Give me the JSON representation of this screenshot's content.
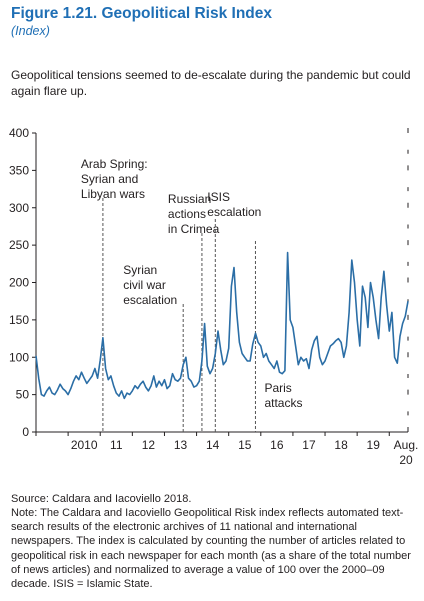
{
  "figure": {
    "title": "Figure 1.21.  Geopolitical Risk Index",
    "subtitle": "(Index)",
    "description": "Geopolitical tensions seemed to de-escalate during the pandemic but could again flare up.",
    "source": "Source: Caldara and Iacoviello 2018.",
    "note": "Note: The Caldara and Iacoviello Geopolitical Risk index reflects automated text-search results of the electronic archives of 11 national and international newspapers. The index is calculated by counting the number of articles related to geopolitical risk in each newspaper for each month (as a share of the total number of news articles) and normalized to average a value of 100 over the 2000–09 decade. ISIS = Islamic State."
  },
  "colors": {
    "series": "#2b6ea6",
    "event_line": "#555555",
    "axis": "#231f20"
  },
  "chart_data": {
    "type": "line",
    "title": "Geopolitical Risk Index",
    "ylabel": "Index",
    "ylim": [
      0,
      400
    ],
    "y_ticks": [
      0,
      50,
      100,
      150,
      200,
      250,
      300,
      350,
      400
    ],
    "x_ticks": [
      {
        "x": 2010,
        "label": "2010"
      },
      {
        "x": 2011,
        "label": "11"
      },
      {
        "x": 2012,
        "label": "12"
      },
      {
        "x": 2013,
        "label": "13"
      },
      {
        "x": 2014,
        "label": "14"
      },
      {
        "x": 2015,
        "label": "15"
      },
      {
        "x": 2016,
        "label": "16"
      },
      {
        "x": 2017,
        "label": "17"
      },
      {
        "x": 2018,
        "label": "18"
      },
      {
        "x": 2019,
        "label": "19"
      }
    ],
    "x_end_label": [
      "Aug.",
      "20"
    ],
    "x_range": [
      "2009-01",
      "2020-08"
    ],
    "grid": false,
    "events": [
      {
        "date": "2011-02",
        "label": [
          "Arab Spring:",
          "Syrian and",
          "Libyan wars"
        ]
      },
      {
        "date": "2013-08",
        "label": [
          "Syrian",
          "civil war",
          "escalation"
        ]
      },
      {
        "date": "2014-03",
        "label": [
          "Russian",
          "actions",
          "in Crimea"
        ]
      },
      {
        "date": "2014-08",
        "label": [
          "ISIS",
          "escalation"
        ]
      },
      {
        "date": "2015-11",
        "label": [
          "Paris",
          "attacks"
        ]
      }
    ],
    "series": [
      {
        "values": [
          [
            "2009-01",
            102
          ],
          [
            "2009-02",
            72
          ],
          [
            "2009-03",
            50
          ],
          [
            "2009-04",
            48
          ],
          [
            "2009-05",
            55
          ],
          [
            "2009-06",
            60
          ],
          [
            "2009-07",
            52
          ],
          [
            "2009-08",
            50
          ],
          [
            "2009-09",
            56
          ],
          [
            "2009-10",
            64
          ],
          [
            "2009-11",
            58
          ],
          [
            "2009-12",
            55
          ],
          [
            "2010-01",
            50
          ],
          [
            "2010-02",
            58
          ],
          [
            "2010-03",
            68
          ],
          [
            "2010-04",
            75
          ],
          [
            "2010-05",
            70
          ],
          [
            "2010-06",
            80
          ],
          [
            "2010-07",
            72
          ],
          [
            "2010-08",
            65
          ],
          [
            "2010-09",
            70
          ],
          [
            "2010-10",
            75
          ],
          [
            "2010-11",
            85
          ],
          [
            "2010-12",
            72
          ],
          [
            "2011-01",
            96
          ],
          [
            "2011-02",
            126
          ],
          [
            "2011-03",
            85
          ],
          [
            "2011-04",
            70
          ],
          [
            "2011-05",
            75
          ],
          [
            "2011-06",
            62
          ],
          [
            "2011-07",
            52
          ],
          [
            "2011-08",
            48
          ],
          [
            "2011-09",
            55
          ],
          [
            "2011-10",
            45
          ],
          [
            "2011-11",
            52
          ],
          [
            "2011-12",
            50
          ],
          [
            "2012-01",
            55
          ],
          [
            "2012-02",
            62
          ],
          [
            "2012-03",
            58
          ],
          [
            "2012-04",
            64
          ],
          [
            "2012-05",
            68
          ],
          [
            "2012-06",
            60
          ],
          [
            "2012-07",
            55
          ],
          [
            "2012-08",
            62
          ],
          [
            "2012-09",
            75
          ],
          [
            "2012-10",
            60
          ],
          [
            "2012-11",
            68
          ],
          [
            "2012-12",
            62
          ],
          [
            "2013-01",
            70
          ],
          [
            "2013-02",
            58
          ],
          [
            "2013-03",
            62
          ],
          [
            "2013-04",
            78
          ],
          [
            "2013-05",
            70
          ],
          [
            "2013-06",
            68
          ],
          [
            "2013-07",
            72
          ],
          [
            "2013-08",
            90
          ],
          [
            "2013-09",
            100
          ],
          [
            "2013-10",
            72
          ],
          [
            "2013-11",
            68
          ],
          [
            "2013-12",
            60
          ],
          [
            "2014-01",
            62
          ],
          [
            "2014-02",
            68
          ],
          [
            "2014-03",
            95
          ],
          [
            "2014-04",
            145
          ],
          [
            "2014-05",
            88
          ],
          [
            "2014-06",
            78
          ],
          [
            "2014-07",
            85
          ],
          [
            "2014-08",
            105
          ],
          [
            "2014-09",
            135
          ],
          [
            "2014-10",
            110
          ],
          [
            "2014-11",
            90
          ],
          [
            "2014-12",
            95
          ],
          [
            "2015-01",
            112
          ],
          [
            "2015-02",
            195
          ],
          [
            "2015-03",
            220
          ],
          [
            "2015-04",
            160
          ],
          [
            "2015-05",
            120
          ],
          [
            "2015-06",
            105
          ],
          [
            "2015-07",
            100
          ],
          [
            "2015-08",
            95
          ],
          [
            "2015-09",
            95
          ],
          [
            "2015-10",
            118
          ],
          [
            "2015-11",
            132
          ],
          [
            "2015-12",
            120
          ],
          [
            "2016-01",
            115
          ],
          [
            "2016-02",
            100
          ],
          [
            "2016-03",
            105
          ],
          [
            "2016-04",
            95
          ],
          [
            "2016-05",
            90
          ],
          [
            "2016-06",
            85
          ],
          [
            "2016-07",
            95
          ],
          [
            "2016-08",
            80
          ],
          [
            "2016-09",
            78
          ],
          [
            "2016-10",
            82
          ],
          [
            "2016-11",
            240
          ],
          [
            "2016-12",
            150
          ],
          [
            "2017-01",
            140
          ],
          [
            "2017-02",
            115
          ],
          [
            "2017-03",
            90
          ],
          [
            "2017-04",
            100
          ],
          [
            "2017-05",
            95
          ],
          [
            "2017-06",
            98
          ],
          [
            "2017-07",
            85
          ],
          [
            "2017-08",
            110
          ],
          [
            "2017-09",
            122
          ],
          [
            "2017-10",
            128
          ],
          [
            "2017-11",
            100
          ],
          [
            "2017-12",
            90
          ],
          [
            "2018-01",
            95
          ],
          [
            "2018-02",
            105
          ],
          [
            "2018-03",
            115
          ],
          [
            "2018-04",
            118
          ],
          [
            "2018-05",
            122
          ],
          [
            "2018-06",
            125
          ],
          [
            "2018-07",
            120
          ],
          [
            "2018-08",
            100
          ],
          [
            "2018-09",
            115
          ],
          [
            "2018-10",
            160
          ],
          [
            "2018-11",
            230
          ],
          [
            "2018-12",
            200
          ],
          [
            "2019-01",
            150
          ],
          [
            "2019-02",
            115
          ],
          [
            "2019-03",
            195
          ],
          [
            "2019-04",
            180
          ],
          [
            "2019-05",
            140
          ],
          [
            "2019-06",
            200
          ],
          [
            "2019-07",
            180
          ],
          [
            "2019-08",
            150
          ],
          [
            "2019-09",
            125
          ],
          [
            "2019-10",
            180
          ],
          [
            "2019-11",
            215
          ],
          [
            "2019-12",
            170
          ],
          [
            "2020-01",
            135
          ],
          [
            "2020-02",
            160
          ],
          [
            "2020-03",
            100
          ],
          [
            "2020-04",
            92
          ],
          [
            "2020-05",
            128
          ],
          [
            "2020-06",
            145
          ],
          [
            "2020-07",
            155
          ],
          [
            "2020-08",
            175
          ]
        ]
      }
    ]
  }
}
